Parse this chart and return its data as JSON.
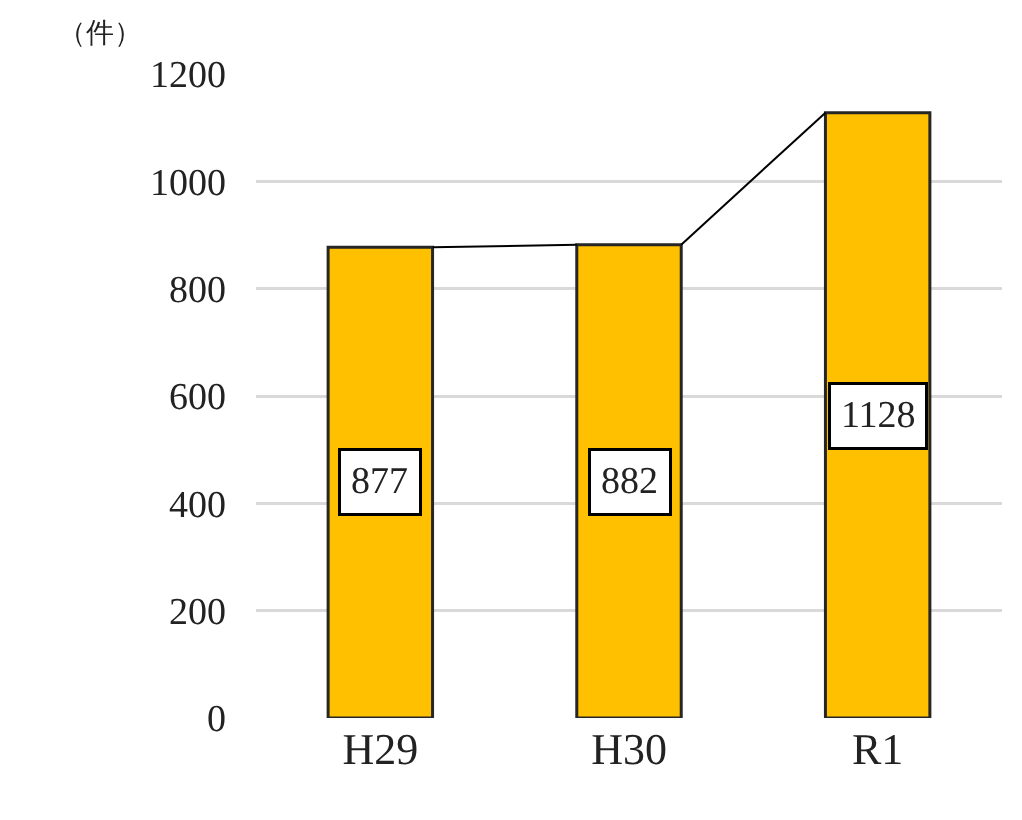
{
  "chart_data": {
    "type": "bar",
    "ylabel": "（件）",
    "categories": [
      "H29",
      "H30",
      "R1"
    ],
    "values": [
      877,
      882,
      1128
    ],
    "color": "#ffc000",
    "ylim": [
      0,
      1200
    ],
    "yticks": [
      0,
      200,
      400,
      600,
      800,
      1000,
      1200
    ],
    "grid": "y",
    "data_labels": true,
    "legend": false
  }
}
